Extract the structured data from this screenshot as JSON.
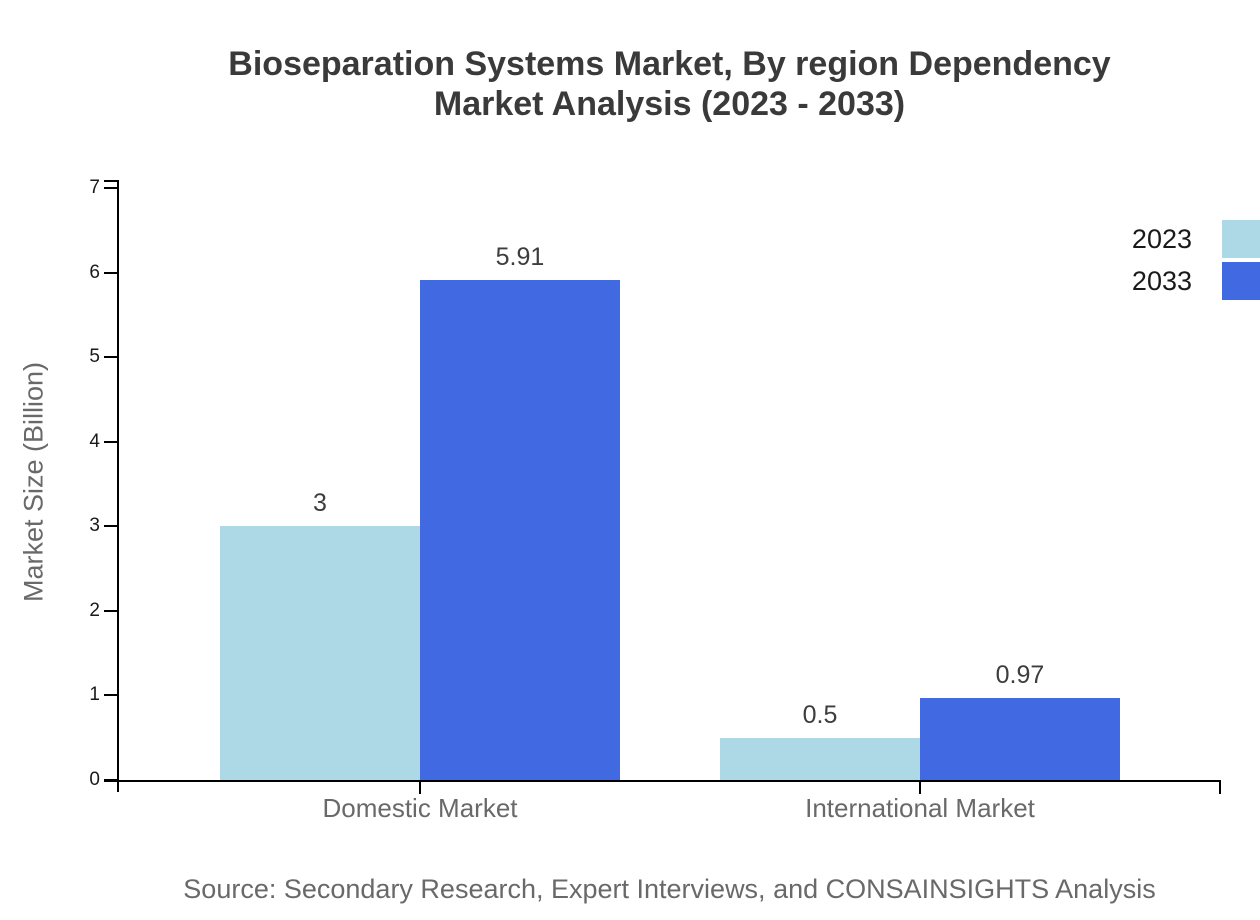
{
  "chart_data": {
    "type": "bar",
    "title": "Bioseparation Systems Market, By region Dependency Market Analysis (2023 - 2033)",
    "title_lines": [
      "Bioseparation Systems Market, By region Dependency",
      "Market Analysis (2023 - 2033)"
    ],
    "categories": [
      "Domestic Market",
      "International Market"
    ],
    "series": [
      {
        "name": "2023",
        "color": "#ADD8E6",
        "values": [
          3,
          0.5
        ]
      },
      {
        "name": "2033",
        "color": "#4169E1",
        "values": [
          5.91,
          0.97
        ]
      }
    ],
    "ylabel": "Market Size (Billion)",
    "ylim": [
      0,
      7
    ],
    "yticks": [
      0,
      1,
      2,
      3,
      4,
      5,
      6,
      7
    ],
    "grid": false,
    "legend_position": "top-right-edge",
    "bar_value_labels": true,
    "source": "Source: Secondary Research, Expert Interviews, and CONSAINSIGHTS Analysis"
  },
  "colors": {
    "background": "#ffffff",
    "title_text": "#3a3a3a",
    "axis": "#000000",
    "tick_label_text": "#1a1a1a",
    "category_label_text": "#696969",
    "value_label_text": "#3d3d3d",
    "muted_text": "#696969",
    "series_2023": "#ADD8E6",
    "series_2033": "#4169E1"
  }
}
